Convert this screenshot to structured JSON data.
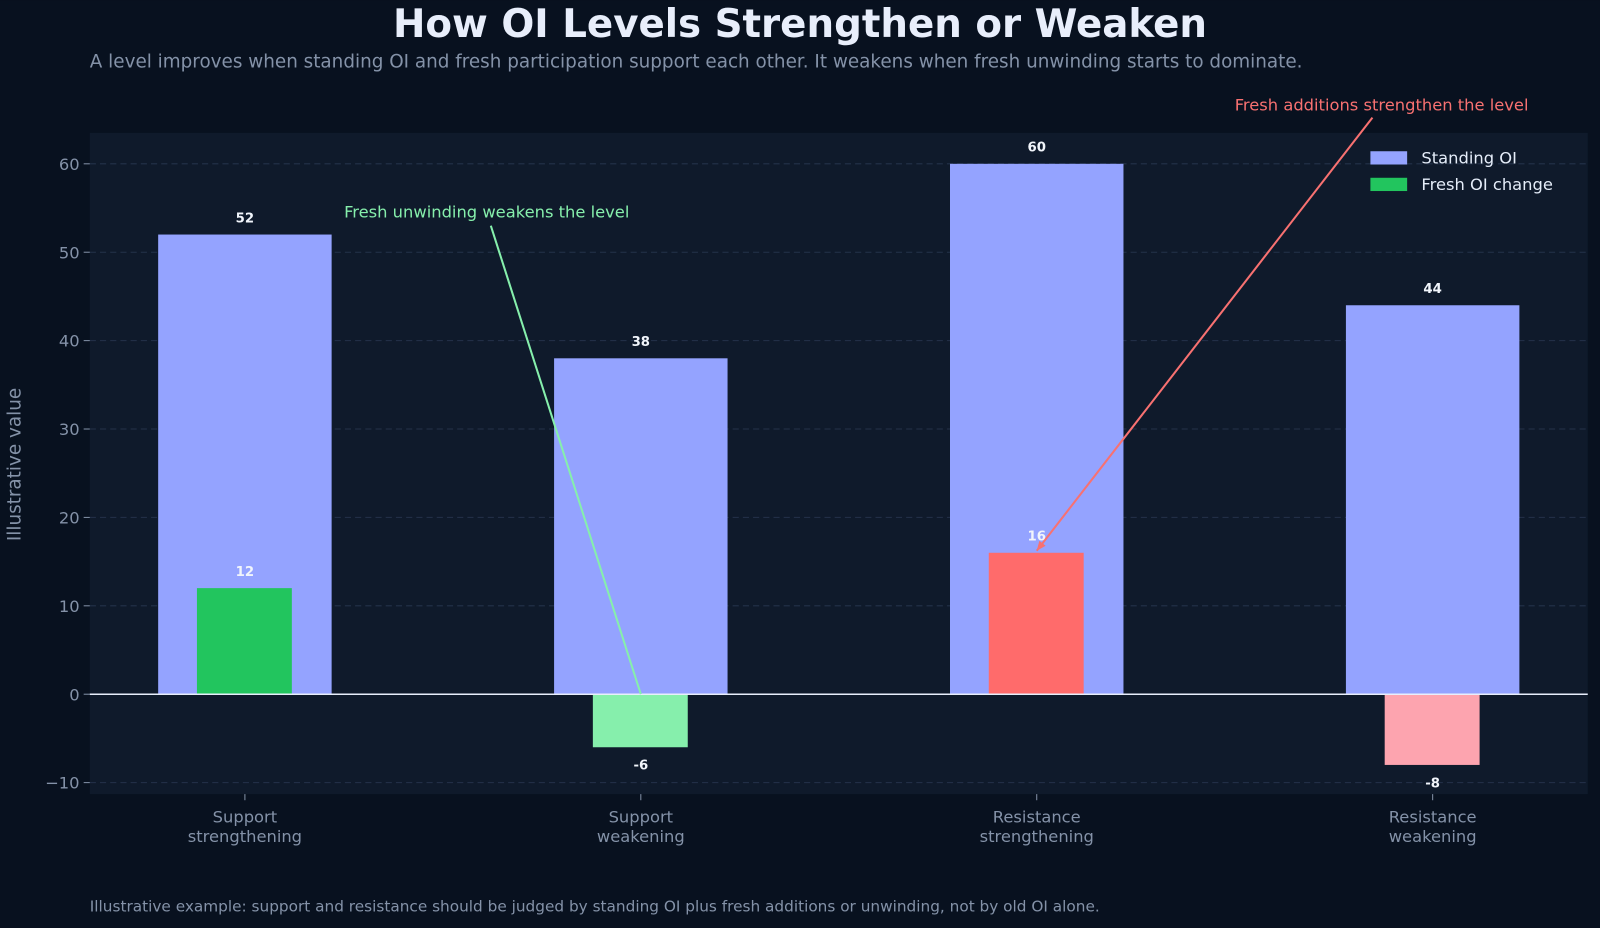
{
  "title": "How OI Levels Strengthen or Weaken",
  "subtitle": "A level improves when standing OI and fresh participation support each other. It weakens when fresh unwinding starts to dominate.",
  "footer": "Illustrative example: support and resistance should be judged by standing OI plus fresh additions or unwinding, not by old OI alone.",
  "chart_data": {
    "type": "bar",
    "categories": [
      "Support\nstrengthening",
      "Support\nweakening",
      "Resistance\nstrengthening",
      "Resistance\nweakening"
    ],
    "series": [
      {
        "name": "Standing OI",
        "values": [
          52,
          38,
          60,
          44
        ],
        "color": "#94a3ff"
      },
      {
        "name": "Fresh OI change",
        "values": [
          12,
          -6,
          16,
          -8
        ],
        "colors": [
          "#22c55e",
          "#86efac",
          "#ff6b6b",
          "#fda4af"
        ],
        "legend_color": "#22c55e"
      }
    ],
    "ylabel": "Illustrative value",
    "xlabel": "",
    "ylim": [
      -11.3,
      63.5
    ],
    "yticks": [
      -10,
      0,
      10,
      20,
      30,
      40,
      50,
      60
    ],
    "grid": true,
    "legend": "top-right",
    "annotations": [
      {
        "text": "Fresh unwinding weakens the level",
        "target_category": 1,
        "target_value": 0,
        "color": "#86efac"
      },
      {
        "text": "Fresh additions strengthen the level",
        "target_category": 2,
        "target_value": 16,
        "color": "#f87171"
      }
    ],
    "colors": {
      "background": "#08111f",
      "plot_background": "#0f1a2b",
      "text": "#e5edf9",
      "muted": "#94a3b8"
    }
  }
}
